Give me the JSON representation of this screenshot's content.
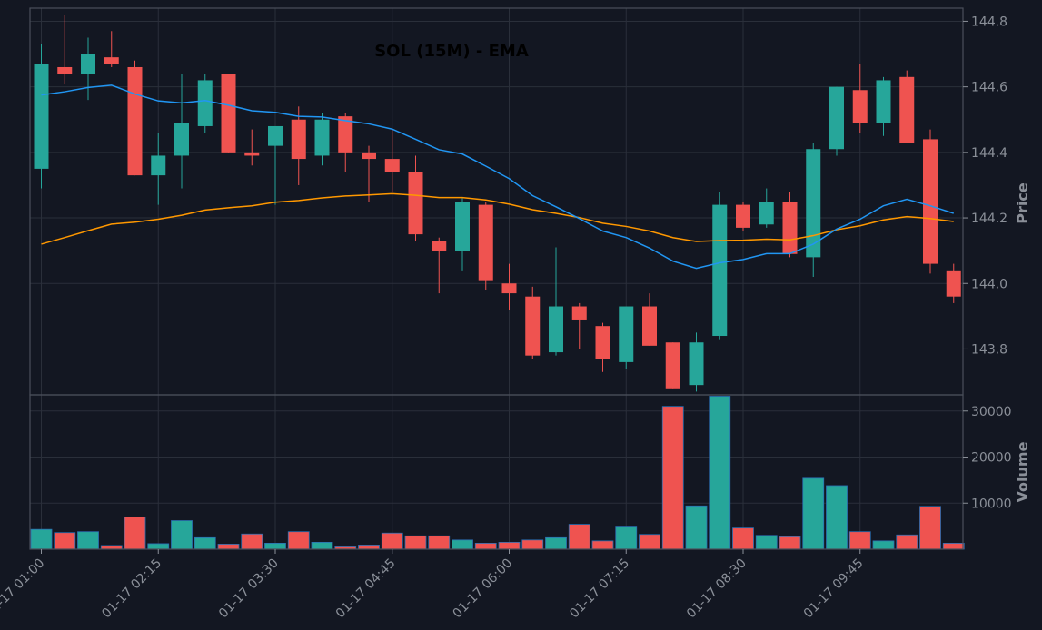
{
  "chart_data": {
    "type": "candlestick",
    "title": "SOL (15M) - EMA",
    "ylabel_price": "Price",
    "ylabel_volume": "Volume",
    "price_ylim": [
      143.66,
      144.84
    ],
    "volume_ylim": [
      0,
      33500
    ],
    "price_ticks": [
      "143.8",
      "144.0",
      "144.2",
      "144.4",
      "144.6",
      "144.8"
    ],
    "price_tick_values": [
      143.8,
      144.0,
      144.2,
      144.4,
      144.6,
      144.8
    ],
    "volume_ticks": [
      "10000",
      "20000",
      "30000"
    ],
    "volume_tick_values": [
      10000,
      20000,
      30000
    ],
    "x_tick_labels": [
      "01-17 01:00",
      "01-17 02:15",
      "01-17 03:30",
      "01-17 04:45",
      "01-17 06:00",
      "01-17 07:15",
      "01-17 08:30",
      "01-17 09:45"
    ],
    "x_tick_index": [
      0,
      5,
      10,
      15,
      20,
      25,
      30,
      35
    ],
    "grid": true,
    "colors": {
      "up": "#26a69a",
      "down": "#ef5350",
      "ema_fast": "#2196f3",
      "ema_slow": "#ff9800",
      "background": "#131722"
    },
    "candles": [
      {
        "o": 144.35,
        "h": 144.73,
        "l": 144.29,
        "c": 144.67
      },
      {
        "o": 144.66,
        "h": 144.82,
        "l": 144.61,
        "c": 144.64
      },
      {
        "o": 144.64,
        "h": 144.75,
        "l": 144.56,
        "c": 144.7
      },
      {
        "o": 144.69,
        "h": 144.77,
        "l": 144.66,
        "c": 144.67
      },
      {
        "o": 144.66,
        "h": 144.68,
        "l": 144.33,
        "c": 144.33
      },
      {
        "o": 144.33,
        "h": 144.46,
        "l": 144.24,
        "c": 144.39
      },
      {
        "o": 144.39,
        "h": 144.64,
        "l": 144.29,
        "c": 144.49
      },
      {
        "o": 144.48,
        "h": 144.64,
        "l": 144.46,
        "c": 144.62
      },
      {
        "o": 144.64,
        "h": 144.64,
        "l": 144.4,
        "c": 144.4
      },
      {
        "o": 144.4,
        "h": 144.47,
        "l": 144.36,
        "c": 144.39
      },
      {
        "o": 144.42,
        "h": 144.48,
        "l": 144.24,
        "c": 144.48
      },
      {
        "o": 144.5,
        "h": 144.54,
        "l": 144.3,
        "c": 144.38
      },
      {
        "o": 144.39,
        "h": 144.52,
        "l": 144.36,
        "c": 144.5
      },
      {
        "o": 144.51,
        "h": 144.52,
        "l": 144.34,
        "c": 144.4
      },
      {
        "o": 144.4,
        "h": 144.42,
        "l": 144.25,
        "c": 144.38
      },
      {
        "o": 144.38,
        "h": 144.47,
        "l": 144.28,
        "c": 144.34
      },
      {
        "o": 144.34,
        "h": 144.39,
        "l": 144.13,
        "c": 144.15
      },
      {
        "o": 144.13,
        "h": 144.14,
        "l": 143.97,
        "c": 144.1
      },
      {
        "o": 144.1,
        "h": 144.26,
        "l": 144.04,
        "c": 144.25
      },
      {
        "o": 144.24,
        "h": 144.25,
        "l": 143.98,
        "c": 144.01
      },
      {
        "o": 144.0,
        "h": 144.06,
        "l": 143.92,
        "c": 143.97
      },
      {
        "o": 143.96,
        "h": 143.99,
        "l": 143.77,
        "c": 143.78
      },
      {
        "o": 143.79,
        "h": 144.11,
        "l": 143.78,
        "c": 143.93
      },
      {
        "o": 143.93,
        "h": 143.94,
        "l": 143.8,
        "c": 143.89
      },
      {
        "o": 143.87,
        "h": 143.88,
        "l": 143.73,
        "c": 143.77
      },
      {
        "o": 143.76,
        "h": 143.93,
        "l": 143.74,
        "c": 143.93
      },
      {
        "o": 143.93,
        "h": 143.97,
        "l": 143.81,
        "c": 143.81
      },
      {
        "o": 143.82,
        "h": 143.82,
        "l": 143.68,
        "c": 143.68
      },
      {
        "o": 143.69,
        "h": 143.85,
        "l": 143.67,
        "c": 143.82
      },
      {
        "o": 143.84,
        "h": 144.28,
        "l": 143.83,
        "c": 144.24
      },
      {
        "o": 144.24,
        "h": 144.25,
        "l": 144.16,
        "c": 144.17
      },
      {
        "o": 144.18,
        "h": 144.29,
        "l": 144.17,
        "c": 144.25
      },
      {
        "o": 144.25,
        "h": 144.28,
        "l": 144.08,
        "c": 144.09
      },
      {
        "o": 144.08,
        "h": 144.43,
        "l": 144.02,
        "c": 144.41
      },
      {
        "o": 144.41,
        "h": 144.6,
        "l": 144.39,
        "c": 144.6
      },
      {
        "o": 144.59,
        "h": 144.67,
        "l": 144.46,
        "c": 144.49
      },
      {
        "o": 144.49,
        "h": 144.63,
        "l": 144.45,
        "c": 144.62
      },
      {
        "o": 144.63,
        "h": 144.65,
        "l": 144.43,
        "c": 144.43
      },
      {
        "o": 144.44,
        "h": 144.47,
        "l": 144.03,
        "c": 144.06
      },
      {
        "o": 144.04,
        "h": 144.06,
        "l": 143.94,
        "c": 143.96
      }
    ],
    "volume": [
      4300,
      3600,
      3800,
      800,
      7000,
      1200,
      6200,
      2500,
      1100,
      3300,
      1300,
      3800,
      1500,
      500,
      900,
      3500,
      2900,
      2900,
      2000,
      1300,
      1500,
      2000,
      2500,
      5400,
      1800,
      5000,
      3200,
      31000,
      9400,
      33200,
      4600,
      3000,
      2700,
      15400,
      13800,
      3800,
      1800,
      3100,
      9300,
      1300
    ],
    "ema_fast": [
      144.575,
      144.585,
      144.598,
      144.605,
      144.578,
      144.557,
      144.551,
      144.558,
      144.544,
      144.527,
      144.522,
      144.51,
      144.508,
      144.497,
      144.487,
      144.471,
      144.44,
      144.408,
      144.395,
      144.358,
      144.32,
      144.268,
      144.234,
      144.198,
      144.16,
      144.14,
      144.108,
      144.068,
      144.046,
      144.063,
      144.073,
      144.091,
      144.091,
      144.12,
      144.166,
      144.196,
      144.237,
      144.257,
      144.237,
      144.214
    ],
    "ema_slow": [
      144.12,
      144.14,
      144.161,
      144.181,
      144.187,
      144.196,
      144.208,
      144.224,
      144.231,
      144.237,
      144.248,
      144.253,
      144.261,
      144.267,
      144.27,
      144.274,
      144.269,
      144.262,
      144.262,
      144.255,
      144.242,
      144.225,
      144.214,
      144.201,
      144.184,
      144.174,
      144.16,
      144.14,
      144.128,
      144.131,
      144.132,
      144.135,
      144.133,
      144.146,
      144.164,
      144.176,
      144.194,
      144.204,
      144.198,
      144.189
    ]
  }
}
